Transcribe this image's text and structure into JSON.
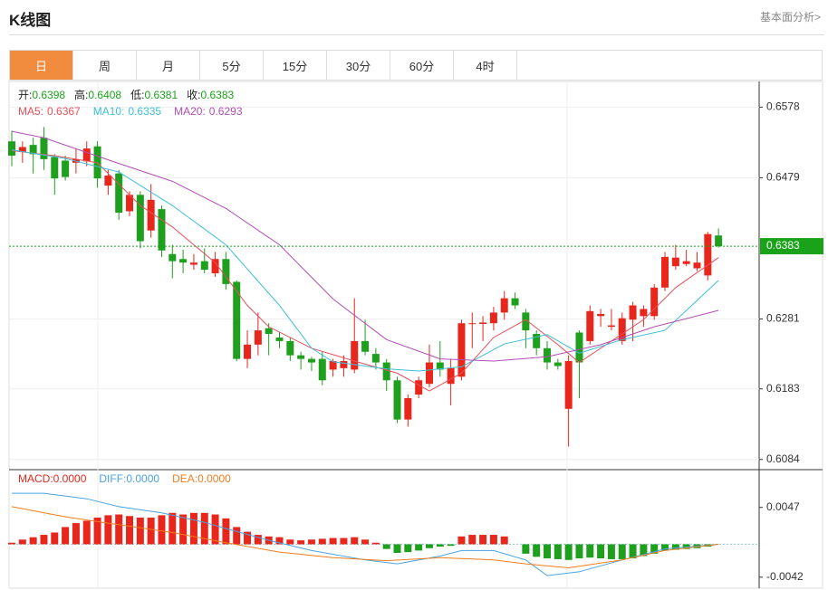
{
  "header": {
    "title": "K线图",
    "link": "基本面分析>"
  },
  "tabs": [
    "日",
    "周",
    "月",
    "5分",
    "15分",
    "30分",
    "60分",
    "4时"
  ],
  "active_tab": 0,
  "chart_data": [
    {
      "type": "candlestick",
      "quote": [
        {
          "label": "开:",
          "value": "0.6398"
        },
        {
          "label": "高:",
          "value": "0.6408"
        },
        {
          "label": "低:",
          "value": "0.6381"
        },
        {
          "label": "收:",
          "value": "0.6383"
        }
      ],
      "up_color": "#e8261c",
      "down_color": "#1e9f1e",
      "open": [
        0.653,
        0.6515,
        0.6525,
        0.6535,
        0.6508,
        0.6503,
        0.65,
        0.6502,
        0.6523,
        0.6468,
        0.6485,
        0.6432,
        0.6455,
        0.6405,
        0.6435,
        0.6372,
        0.6365,
        0.6357,
        0.6362,
        0.6345,
        0.6365,
        0.6333,
        0.6225,
        0.6245,
        0.6268,
        0.6255,
        0.625,
        0.623,
        0.6225,
        0.6225,
        0.621,
        0.6212,
        0.621,
        0.625,
        0.6232,
        0.622,
        0.6195,
        0.614,
        0.6175,
        0.619,
        0.622,
        0.619,
        0.62,
        0.6274,
        0.6274,
        0.6275,
        0.629,
        0.631,
        0.629,
        0.626,
        0.624,
        0.622,
        0.6155,
        0.6262,
        0.625,
        0.6285,
        0.627,
        0.625,
        0.628,
        0.6285,
        0.6285,
        0.6325,
        0.6355,
        0.6358,
        0.6352,
        0.6342,
        0.6398
      ],
      "high": [
        0.6545,
        0.653,
        0.6535,
        0.655,
        0.6512,
        0.651,
        0.652,
        0.653,
        0.653,
        0.649,
        0.649,
        0.646,
        0.646,
        0.647,
        0.644,
        0.6385,
        0.6378,
        0.6372,
        0.638,
        0.6375,
        0.6375,
        0.6335,
        0.6265,
        0.629,
        0.6275,
        0.6262,
        0.6255,
        0.6235,
        0.6228,
        0.6235,
        0.6225,
        0.623,
        0.631,
        0.628,
        0.624,
        0.6225,
        0.62,
        0.6175,
        0.62,
        0.6245,
        0.625,
        0.6225,
        0.628,
        0.629,
        0.6285,
        0.6298,
        0.632,
        0.6318,
        0.6295,
        0.6265,
        0.625,
        0.6225,
        0.623,
        0.6265,
        0.63,
        0.6295,
        0.6295,
        0.629,
        0.6305,
        0.63,
        0.633,
        0.6375,
        0.6385,
        0.6378,
        0.6375,
        0.6403,
        0.6408
      ],
      "low": [
        0.6495,
        0.65,
        0.6485,
        0.649,
        0.6455,
        0.6475,
        0.6485,
        0.6495,
        0.6465,
        0.6455,
        0.642,
        0.6425,
        0.638,
        0.6395,
        0.6368,
        0.6338,
        0.6345,
        0.635,
        0.6345,
        0.634,
        0.6322,
        0.6222,
        0.6212,
        0.623,
        0.623,
        0.624,
        0.6222,
        0.621,
        0.6208,
        0.6188,
        0.62,
        0.62,
        0.6205,
        0.623,
        0.621,
        0.618,
        0.6135,
        0.613,
        0.617,
        0.6185,
        0.62,
        0.616,
        0.6195,
        0.624,
        0.625,
        0.6265,
        0.628,
        0.6295,
        0.624,
        0.623,
        0.621,
        0.621,
        0.6102,
        0.617,
        0.6245,
        0.627,
        0.6265,
        0.6245,
        0.625,
        0.627,
        0.628,
        0.632,
        0.635,
        0.6355,
        0.6348,
        0.6335,
        0.6381
      ],
      "close": [
        0.651,
        0.6522,
        0.6512,
        0.6505,
        0.6478,
        0.648,
        0.6505,
        0.652,
        0.6478,
        0.6482,
        0.643,
        0.6455,
        0.639,
        0.6448,
        0.6377,
        0.6362,
        0.636,
        0.636,
        0.635,
        0.6365,
        0.633,
        0.6225,
        0.6245,
        0.6265,
        0.626,
        0.625,
        0.623,
        0.6225,
        0.622,
        0.6195,
        0.6222,
        0.6222,
        0.625,
        0.6235,
        0.622,
        0.6195,
        0.614,
        0.617,
        0.6195,
        0.622,
        0.621,
        0.6212,
        0.6275,
        0.6275,
        0.6276,
        0.629,
        0.631,
        0.63,
        0.6265,
        0.624,
        0.622,
        0.6215,
        0.6222,
        0.622,
        0.6292,
        0.6288,
        0.6272,
        0.6282,
        0.63,
        0.6295,
        0.6325,
        0.6368,
        0.6367,
        0.6362,
        0.636,
        0.64,
        0.6383
      ],
      "series": [
        {
          "name": "MA5:",
          "label": "0.6367",
          "color": "#e8505b",
          "x": [
            0,
            4,
            8,
            12,
            15,
            19,
            22,
            24,
            28,
            32,
            36,
            39,
            42,
            45,
            48,
            51,
            53,
            56,
            59,
            62,
            66
          ],
          "values": [
            0.6517,
            0.651,
            0.65,
            0.644,
            0.641,
            0.636,
            0.63,
            0.627,
            0.624,
            0.6222,
            0.6205,
            0.618,
            0.6205,
            0.6255,
            0.628,
            0.6245,
            0.622,
            0.625,
            0.628,
            0.6325,
            0.6367
          ]
        },
        {
          "name": "MA10:",
          "label": "0.6335",
          "color": "#3cbfd8",
          "x": [
            0,
            5,
            10,
            15,
            20,
            25,
            28,
            30,
            35,
            38,
            42,
            46,
            50,
            53,
            57,
            61,
            66
          ],
          "values": [
            0.6518,
            0.6506,
            0.6487,
            0.644,
            0.6385,
            0.63,
            0.624,
            0.6221,
            0.6211,
            0.6208,
            0.6214,
            0.6246,
            0.6259,
            0.6233,
            0.6252,
            0.6265,
            0.6335
          ]
        },
        {
          "name": "MA20:",
          "label": "0.6293",
          "color": "#b14db4",
          "x": [
            0,
            3,
            10,
            15,
            20,
            25,
            30,
            35,
            40,
            45,
            50,
            55,
            60,
            66
          ],
          "values": [
            0.6544,
            0.6535,
            0.6499,
            0.6474,
            0.6436,
            0.6385,
            0.6309,
            0.6252,
            0.6225,
            0.6222,
            0.6228,
            0.6245,
            0.627,
            0.6293
          ]
        }
      ],
      "price_line": 0.6383,
      "price_line_color": "#1aa31a",
      "ylim": [
        0.6071,
        0.6614
      ],
      "yticks": [
        0.6578,
        0.6479,
        0.6281,
        0.6183,
        0.6084
      ],
      "grid": true
    },
    {
      "type": "macd",
      "histogram": {
        "name": "MACD:",
        "label": "0.0000",
        "color": "#e8261c",
        "up_color": "#e8261c",
        "down_color": "#1e9f1e",
        "values": [
          0.0002,
          0.0006,
          0.0009,
          0.0012,
          0.0015,
          0.0022,
          0.0027,
          0.003,
          0.0034,
          0.0037,
          0.0038,
          0.0036,
          0.0034,
          0.0034,
          0.0037,
          0.004,
          0.0038,
          0.004,
          0.004,
          0.0038,
          0.0033,
          0.0022,
          0.0016,
          0.0012,
          0.001,
          0.0009,
          0.0006,
          0.0005,
          0.0006,
          0.0007,
          0.0008,
          0.0008,
          0.0009,
          0.0006,
          0.0002,
          -0.0006,
          -0.0011,
          -0.001,
          -0.0008,
          -0.0005,
          -0.0003,
          -0.0002,
          0.001,
          0.0012,
          0.0012,
          0.0012,
          0.001,
          0,
          -0.0012,
          -0.0016,
          -0.0018,
          -0.0019,
          -0.002,
          -0.0018,
          -0.0017,
          -0.0018,
          -0.0019,
          -0.0019,
          -0.0018,
          -0.0015,
          -0.0012,
          -0.0008,
          -0.0007,
          -0.0006,
          -0.0005,
          -0.0003,
          0
        ]
      },
      "series": [
        {
          "name": "DIFF:",
          "label": "0.0000",
          "color": "#4aa3e0",
          "x": [
            0,
            3,
            7,
            10,
            14,
            18,
            20,
            24,
            28,
            33,
            36,
            40,
            42,
            45,
            48,
            50,
            53,
            57,
            61,
            66
          ],
          "values": [
            0.0065,
            0.0065,
            0.0058,
            0.0048,
            0.004,
            0.0028,
            0.002,
            0.0005,
            -0.0008,
            -0.002,
            -0.0025,
            -0.0015,
            -0.0008,
            -0.0008,
            -0.002,
            -0.004,
            -0.0035,
            -0.002,
            -0.0006,
            0
          ]
        },
        {
          "name": "DEA:",
          "label": "0.0000",
          "color": "#f07d1e",
          "x": [
            0,
            5,
            10,
            15,
            20,
            25,
            30,
            35,
            40,
            45,
            48,
            52,
            57,
            61,
            66
          ],
          "values": [
            0.0048,
            0.0035,
            0.0025,
            0.0015,
            0.0002,
            -0.001,
            -0.0017,
            -0.0021,
            -0.0017,
            -0.002,
            -0.0025,
            -0.003,
            -0.002,
            -0.0008,
            0
          ]
        }
      ],
      "ylim": [
        -0.0056,
        0.0094
      ],
      "yticks": [
        0.0047,
        -0.0042
      ]
    }
  ]
}
